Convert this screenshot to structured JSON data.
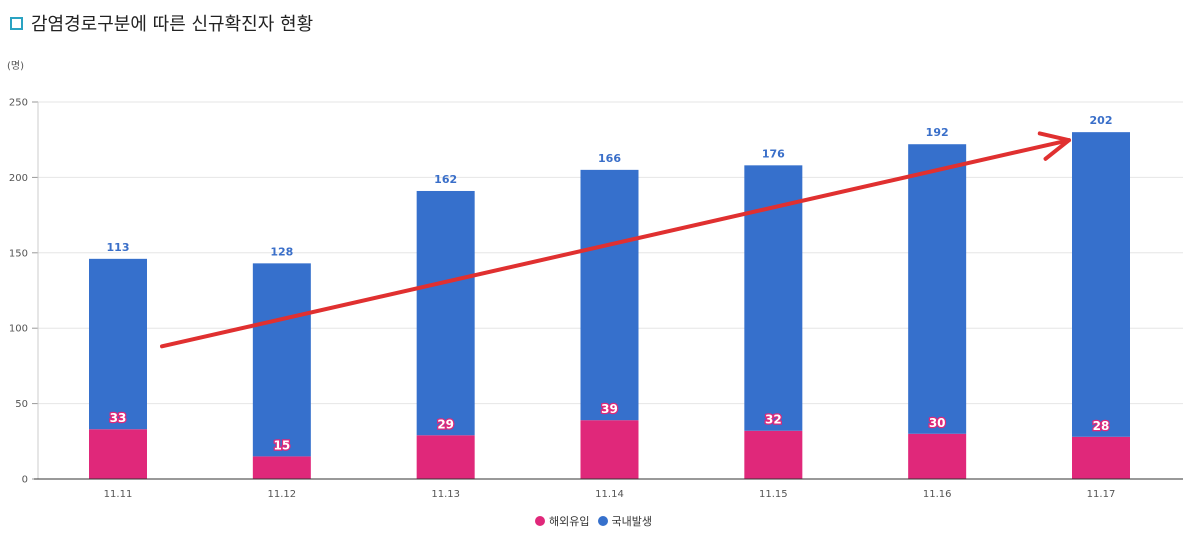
{
  "title": "감염경로구분에 따른 신규확진자 현황",
  "colors": {
    "title_icon": "#2aa3c2",
    "overseas": "#e0287a",
    "domestic": "#3670cc",
    "total_label": "#3a6fc9",
    "arrow": "#e03030"
  },
  "legend": {
    "overseas": "해외유입",
    "domestic": "국내발생"
  },
  "chart_data": {
    "type": "bar",
    "stacked": true,
    "y_unit": "(명)",
    "categories": [
      "11.11",
      "11.12",
      "11.13",
      "11.14",
      "11.15",
      "11.16",
      "11.17"
    ],
    "series": [
      {
        "name": "해외유입",
        "values": [
          33,
          15,
          29,
          39,
          32,
          30,
          28
        ]
      },
      {
        "name": "국내발생",
        "values": [
          113,
          128,
          162,
          166,
          176,
          192,
          202
        ]
      }
    ],
    "ylim": [
      0,
      250
    ],
    "yticks": [
      0,
      50,
      100,
      150,
      200,
      250
    ],
    "grid": true,
    "legend_position": "bottom-center",
    "annotation": {
      "type": "arrow",
      "from": [
        "11.11",
        88
      ],
      "to": [
        "11.17",
        230
      ]
    }
  }
}
